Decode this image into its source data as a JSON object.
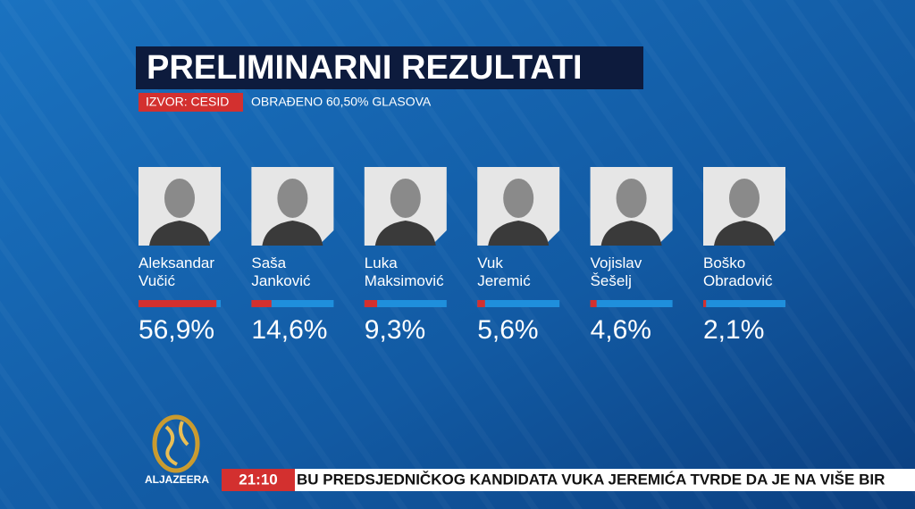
{
  "chart_data": {
    "type": "bar",
    "title": "PRELIMINARNI REZULTATI",
    "source": "IZVOR: CESID",
    "subtitle": "OBRAĐENO 60,50% GLASOVA",
    "categories": [
      "Aleksandar Vučić",
      "Saša Janković",
      "Luka Maksimović",
      "Vuk Jeremić",
      "Vojislav Šešelj",
      "Boško Obradović"
    ],
    "values": [
      56.9,
      14.6,
      9.3,
      5.6,
      4.6,
      2.1
    ],
    "value_labels": [
      "56,9%",
      "14,6%",
      "9,3%",
      "5,6%",
      "4,6%",
      "2,1%"
    ],
    "color": "#d3302f",
    "track_color": "#1f8fdc",
    "ylim": [
      0,
      60
    ]
  },
  "logo": "ALJAZEERA",
  "ticker": {
    "time": "21:10",
    "text": "BU PREDSJEDNIČKOG KANDIDATA VUKA JEREMIĆA TVRDE DA JE NA VIŠE BIR"
  }
}
